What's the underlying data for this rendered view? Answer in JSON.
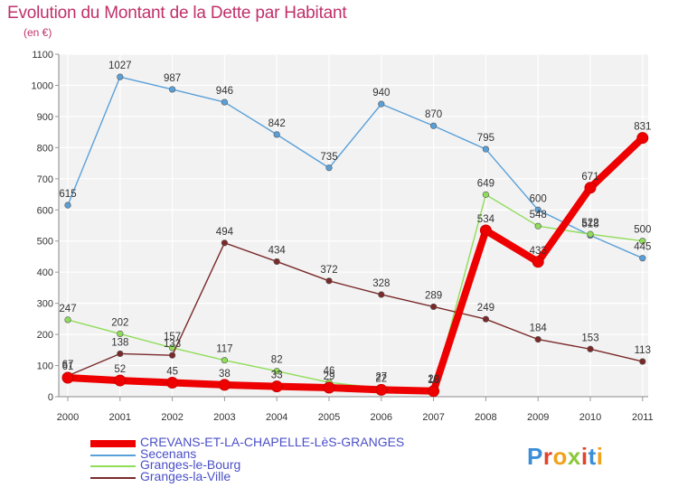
{
  "header": {
    "title": "Evolution du Montant de la Dette par Habitant",
    "subtitle": "(en €)"
  },
  "logo": {
    "text": "Proxiti"
  },
  "chart_data": {
    "type": "line",
    "title": "Evolution du Montant de la Dette par Habitant",
    "ylabel": "(en €)",
    "xlabel": "",
    "categories": [
      "2000",
      "2001",
      "2002",
      "2003",
      "2004",
      "2005",
      "2006",
      "2007",
      "2008",
      "2009",
      "2010",
      "2011"
    ],
    "yticks": [
      "0",
      "100",
      "200",
      "300",
      "400",
      "500",
      "600",
      "700",
      "800",
      "900",
      "1000",
      "1100"
    ],
    "ylim": [
      0,
      1100
    ],
    "grid": true,
    "legend": "bottom-left",
    "series": [
      {
        "name": "CREVANS-ET-LA-CHAPELLE-LèS-GRANGES",
        "color": "#ee0000",
        "values": [
          61,
          52,
          45,
          38,
          33,
          29,
          22,
          18,
          534,
          433,
          671,
          831
        ]
      },
      {
        "name": "Secenans",
        "color": "#5aa0d8",
        "values": [
          615,
          1027,
          987,
          946,
          842,
          735,
          940,
          870,
          795,
          600,
          518,
          445
        ]
      },
      {
        "name": "Granges-le-Bourg",
        "color": "#90dd5a",
        "values": [
          247,
          202,
          157,
          117,
          82,
          46,
          27,
          20,
          649,
          548,
          522,
          500
        ]
      },
      {
        "name": "Granges-la-Ville",
        "color": "#7a2a2a",
        "values": [
          67,
          138,
          133,
          494,
          434,
          372,
          328,
          289,
          249,
          184,
          153,
          113
        ]
      }
    ]
  }
}
